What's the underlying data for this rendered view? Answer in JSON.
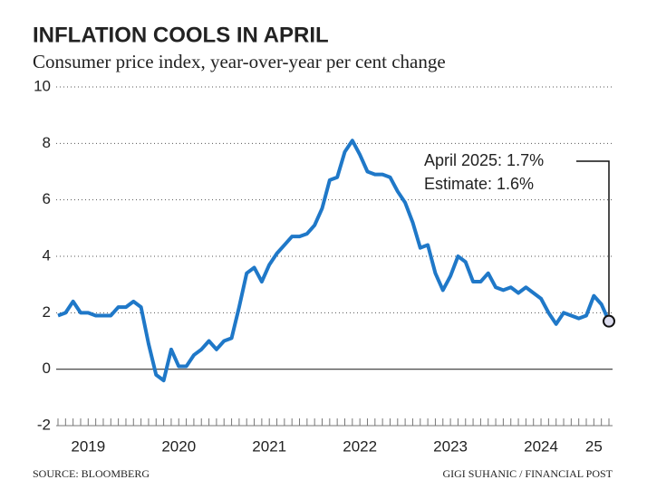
{
  "chart_data": {
    "type": "line",
    "title": "INFLATION COOLS IN APRIL",
    "subtitle": "Consumer price index, year-over-year per cent change",
    "source": "SOURCE: BLOOMBERG",
    "credit": "GIGI SUHANIC / FINANCIAL POST",
    "annotations": [
      "April 2025: 1.7%",
      "Estimate: 1.6%"
    ],
    "x": [
      "2019-03",
      "2019-04",
      "2019-05",
      "2019-06",
      "2019-07",
      "2019-08",
      "2019-09",
      "2019-10",
      "2019-11",
      "2019-12",
      "2020-01",
      "2020-02",
      "2020-03",
      "2020-04",
      "2020-05",
      "2020-06",
      "2020-07",
      "2020-08",
      "2020-09",
      "2020-10",
      "2020-11",
      "2020-12",
      "2021-01",
      "2021-02",
      "2021-03",
      "2021-04",
      "2021-05",
      "2021-06",
      "2021-07",
      "2021-08",
      "2021-09",
      "2021-10",
      "2021-11",
      "2021-12",
      "2022-01",
      "2022-02",
      "2022-03",
      "2022-04",
      "2022-05",
      "2022-06",
      "2022-07",
      "2022-08",
      "2022-09",
      "2022-10",
      "2022-11",
      "2022-12",
      "2023-01",
      "2023-02",
      "2023-03",
      "2023-04",
      "2023-05",
      "2023-06",
      "2023-07",
      "2023-08",
      "2023-09",
      "2023-10",
      "2023-11",
      "2023-12",
      "2024-01",
      "2024-02",
      "2024-03",
      "2024-04",
      "2024-05",
      "2024-06",
      "2024-07",
      "2024-08",
      "2024-09",
      "2024-10",
      "2024-11",
      "2024-12",
      "2025-01",
      "2025-02",
      "2025-03",
      "2025-04"
    ],
    "series": [
      {
        "color": "#1f78c8",
        "values": [
          1.9,
          2.0,
          2.4,
          2.0,
          2.0,
          1.9,
          1.9,
          1.9,
          2.2,
          2.2,
          2.4,
          2.2,
          0.9,
          -0.2,
          -0.4,
          0.7,
          0.1,
          0.1,
          0.5,
          0.7,
          1.0,
          0.7,
          1.0,
          1.1,
          2.2,
          3.4,
          3.6,
          3.1,
          3.7,
          4.1,
          4.4,
          4.7,
          4.7,
          4.8,
          5.1,
          5.7,
          6.7,
          6.8,
          7.7,
          8.1,
          7.6,
          7.0,
          6.9,
          6.9,
          6.8,
          6.3,
          5.9,
          5.2,
          4.3,
          4.4,
          3.4,
          2.8,
          3.3,
          4.0,
          3.8,
          3.1,
          3.1,
          3.4,
          2.9,
          2.8,
          2.9,
          2.7,
          2.9,
          2.7,
          2.5,
          2.0,
          1.6,
          2.0,
          1.9,
          1.8,
          1.9,
          2.6,
          2.3,
          1.7
        ]
      }
    ],
    "xticks": [
      {
        "value": "2019-07",
        "label": "2019"
      },
      {
        "value": "2020-07",
        "label": "2020"
      },
      {
        "value": "2021-07",
        "label": "2021"
      },
      {
        "value": "2022-07",
        "label": "2022"
      },
      {
        "value": "2023-07",
        "label": "2023"
      },
      {
        "value": "2024-07",
        "label": "2024"
      },
      {
        "value": "2025-02",
        "label": "25"
      }
    ],
    "ylim": [
      -2,
      10
    ],
    "yticks": [
      -2,
      0,
      2,
      4,
      6,
      8,
      10
    ],
    "grid": true
  }
}
